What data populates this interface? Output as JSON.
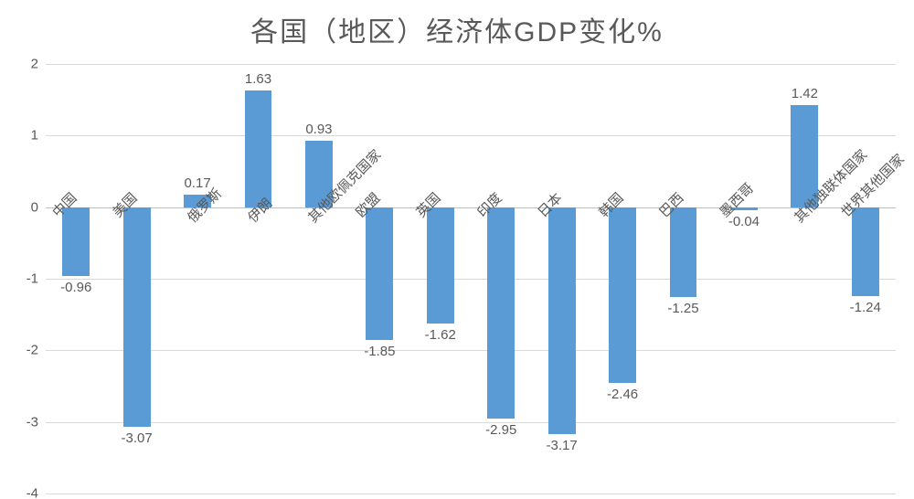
{
  "chart": {
    "type": "bar",
    "title": "各国（地区）经济体GDP变化%",
    "title_fontsize": 30,
    "title_color": "#595959",
    "background_color": "#ffffff",
    "grid_color": "#d9d9d9",
    "axis_line_color": "#bfbfbf",
    "bar_color": "#5a9bd5",
    "ylim": [
      -4,
      2
    ],
    "ytick_step": 1,
    "yticks": [
      -4,
      -3,
      -2,
      -1,
      0,
      1,
      2
    ],
    "ylabel_fontsize": 15,
    "value_label_fontsize": 15,
    "category_label_fontsize": 15,
    "label_color": "#595959",
    "bar_width_ratio": 0.45,
    "category_label_rotation_deg": -45,
    "categories": [
      "中国",
      "美国",
      "俄罗斯",
      "伊朗",
      "其他欧佩克国家",
      "欧盟",
      "英国",
      "印度",
      "日本",
      "韩国",
      "巴西",
      "墨西哥",
      "其他独联体国家",
      "世界其他国家"
    ],
    "values": [
      -0.96,
      -3.07,
      0.17,
      1.63,
      0.93,
      -1.85,
      -1.62,
      -2.95,
      -3.17,
      -2.46,
      -1.25,
      -0.04,
      1.42,
      -1.24
    ]
  }
}
